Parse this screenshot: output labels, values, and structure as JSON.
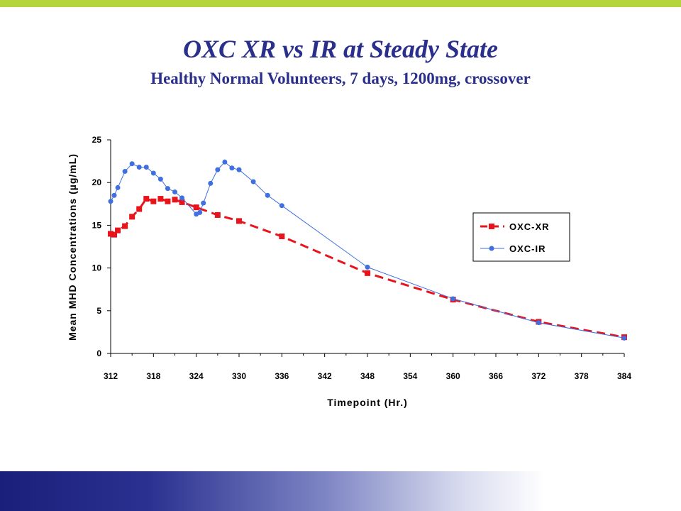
{
  "slide": {
    "title": "OXC XR vs IR at Steady State",
    "subtitle": "Healthy Normal Volunteers, 7 days, 1200mg, crossover",
    "colors": {
      "top_bar": "#b4d53b",
      "title": "#2b2f8c",
      "bottom_bar": "#1a1f7a"
    }
  },
  "chart_data": {
    "type": "line",
    "xlabel": "Timepoint (Hr.)",
    "ylabel": "Mean MHD Concentrations (µg/mL)",
    "xlim": [
      312,
      384
    ],
    "ylim": [
      0,
      25
    ],
    "xticks": [
      "312",
      "318",
      "324",
      "330",
      "336",
      "342",
      "348",
      "354",
      "360",
      "366",
      "372",
      "378",
      "384"
    ],
    "yticks": [
      "0",
      "5",
      "10",
      "15",
      "20",
      "25"
    ],
    "grid": false,
    "legend_position": "right",
    "series": [
      {
        "name": "OXC-XR",
        "color": "#e8131b",
        "line_style": "dashed",
        "marker": "square",
        "x": [
          312,
          312.5,
          313,
          314,
          315,
          316,
          317,
          318,
          319,
          320,
          321,
          322,
          324,
          327,
          330,
          336,
          348,
          360,
          372,
          384
        ],
        "y": [
          14.0,
          13.9,
          14.4,
          14.9,
          16.0,
          16.9,
          18.1,
          17.8,
          18.1,
          17.8,
          18.0,
          17.7,
          17.1,
          16.2,
          15.5,
          13.7,
          9.4,
          6.3,
          3.7,
          1.9
        ]
      },
      {
        "name": "OXC-IR",
        "color": "#3f6fe0",
        "line_style": "solid",
        "marker": "circle",
        "x": [
          312,
          312.5,
          313,
          314,
          315,
          316,
          317,
          318,
          319,
          320,
          321,
          322,
          324,
          324.5,
          325,
          326,
          327,
          328,
          329,
          330,
          332,
          334,
          336,
          348,
          360,
          372,
          384
        ],
        "y": [
          17.8,
          18.5,
          19.4,
          21.3,
          22.2,
          21.8,
          21.8,
          21.1,
          20.4,
          19.3,
          18.9,
          18.2,
          16.3,
          16.5,
          17.6,
          19.9,
          21.5,
          22.4,
          21.7,
          21.5,
          20.1,
          18.5,
          17.3,
          10.1,
          6.4,
          3.6,
          1.8
        ]
      }
    ]
  }
}
